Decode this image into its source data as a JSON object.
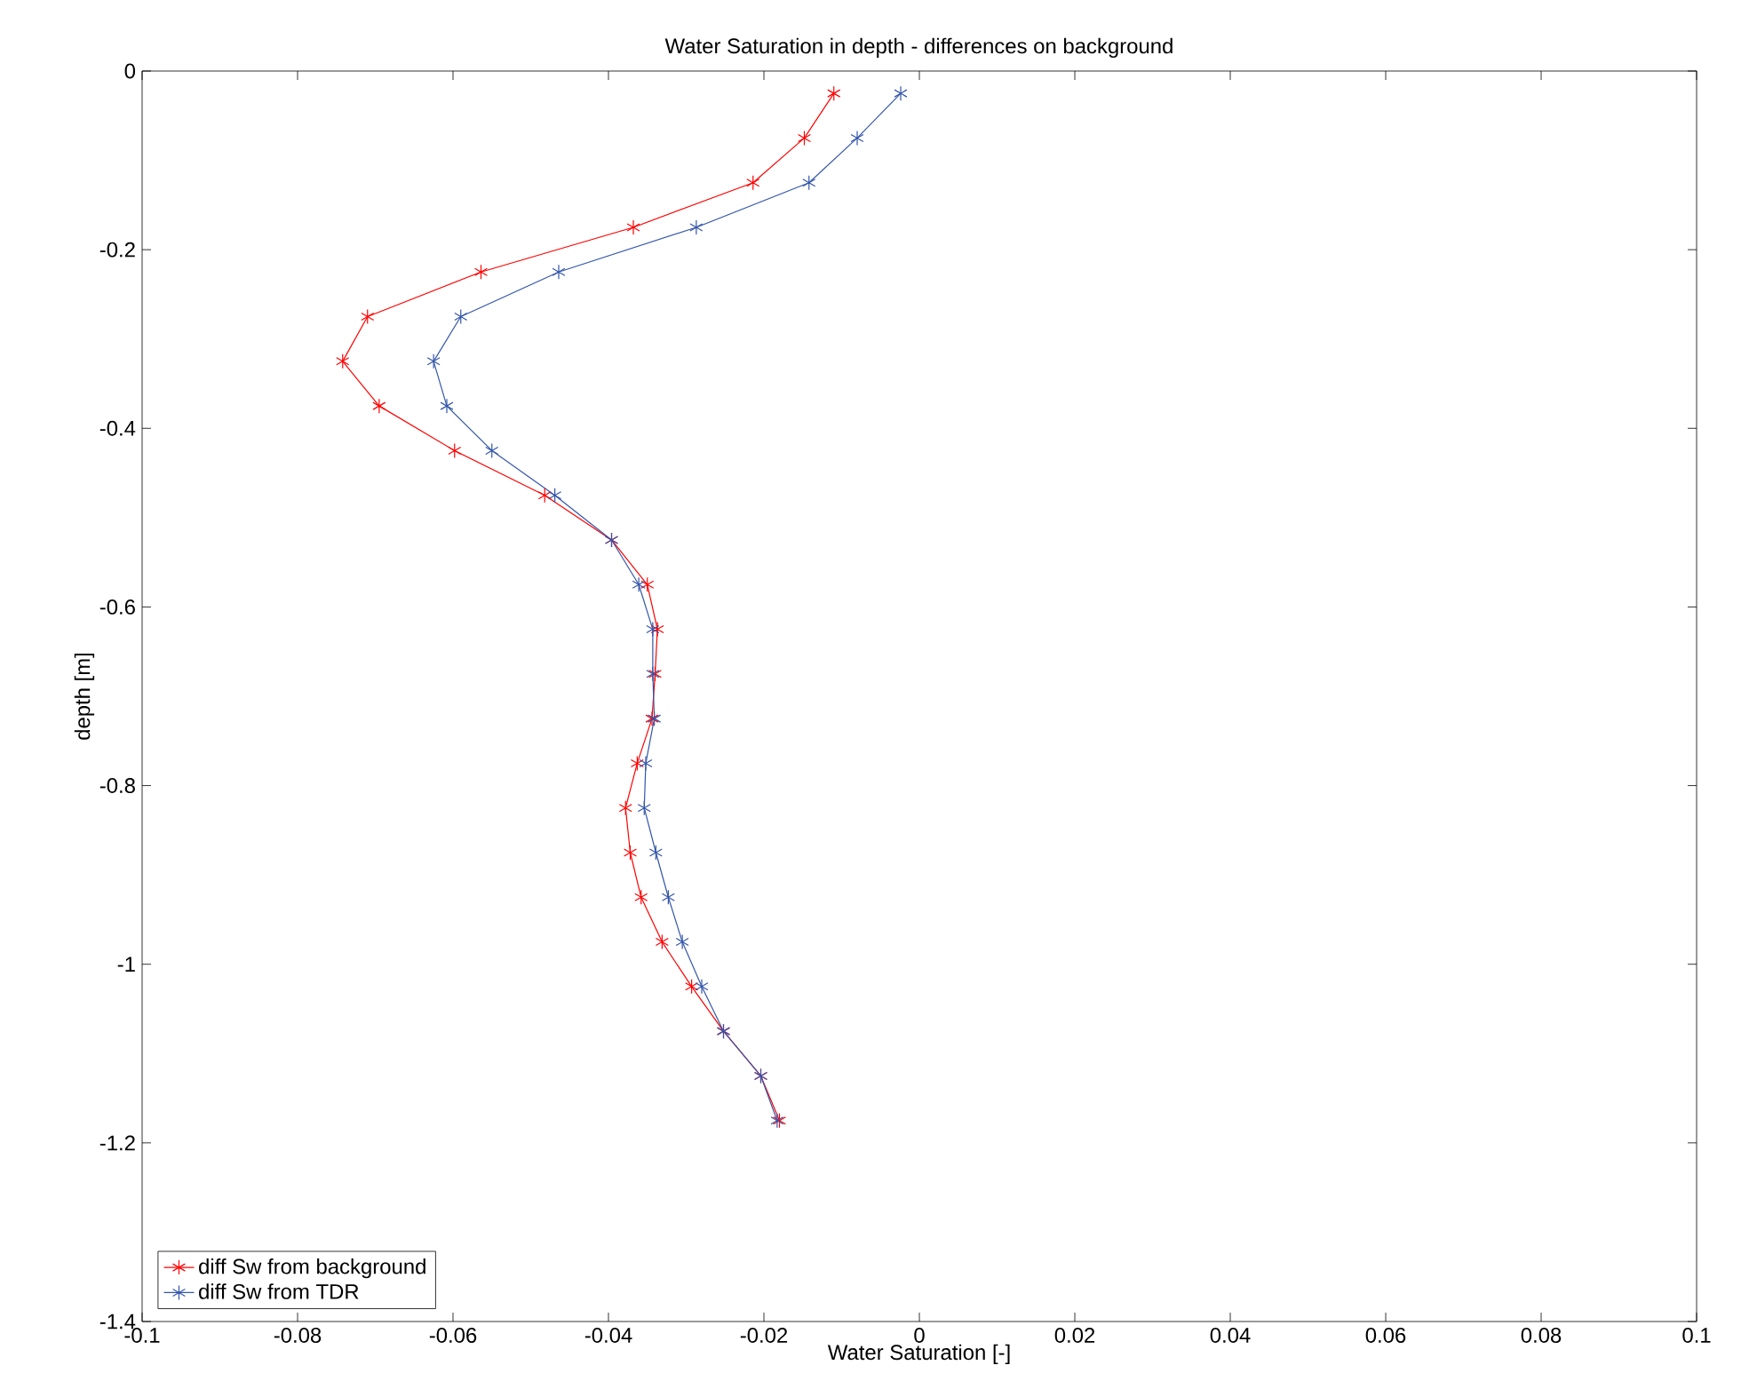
{
  "chart_data": {
    "type": "line",
    "title": "Water Saturation in depth - differences on background",
    "xlabel": "Water Saturation [-]",
    "ylabel": "depth [m]",
    "xlim": [
      -0.1,
      0.1
    ],
    "ylim": [
      -1.4,
      0
    ],
    "xticks": [
      -0.1,
      -0.08,
      -0.06,
      -0.04,
      -0.02,
      0,
      0.02,
      0.04,
      0.06,
      0.08,
      0.1
    ],
    "yticks": [
      -1.4,
      -1.2,
      -1,
      -0.8,
      -0.6,
      -0.4,
      -0.2,
      0
    ],
    "marker": "cross",
    "line_style": "solid",
    "grid": false,
    "legend": "bottom left",
    "series": [
      {
        "name": "diff Sw from background",
        "color": "#ff0000",
        "x": [
          -0.011,
          -0.0148,
          -0.0214,
          -0.0368,
          -0.0564,
          -0.071,
          -0.0742,
          -0.0695,
          -0.0598,
          -0.0482,
          -0.0396,
          -0.035,
          -0.0337,
          -0.034,
          -0.0344,
          -0.0363,
          -0.0378,
          -0.0372,
          -0.0358,
          -0.0331,
          -0.0293,
          -0.0252,
          -0.0204,
          -0.018
        ],
        "values": [
          -0.025,
          -0.075,
          -0.125,
          -0.175,
          -0.225,
          -0.275,
          -0.325,
          -0.375,
          -0.425,
          -0.475,
          -0.525,
          -0.575,
          -0.625,
          -0.675,
          -0.725,
          -0.775,
          -0.825,
          -0.875,
          -0.925,
          -0.975,
          -1.025,
          -1.075,
          -1.125,
          -1.175
        ]
      },
      {
        "name": "diff Sw from TDR",
        "color": "#3355aa",
        "x": [
          -0.0024,
          -0.008,
          -0.0142,
          -0.0287,
          -0.0464,
          -0.059,
          -0.0625,
          -0.0608,
          -0.055,
          -0.0469,
          -0.0396,
          -0.0361,
          -0.0343,
          -0.0343,
          -0.0341,
          -0.0352,
          -0.0354,
          -0.0339,
          -0.0323,
          -0.0305,
          -0.028,
          -0.0252,
          -0.0204,
          -0.0183
        ],
        "values": [
          -0.025,
          -0.075,
          -0.125,
          -0.175,
          -0.225,
          -0.275,
          -0.325,
          -0.375,
          -0.425,
          -0.475,
          -0.525,
          -0.575,
          -0.625,
          -0.675,
          -0.725,
          -0.775,
          -0.825,
          -0.875,
          -0.925,
          -0.975,
          -1.025,
          -1.075,
          -1.125,
          -1.175
        ]
      }
    ]
  }
}
